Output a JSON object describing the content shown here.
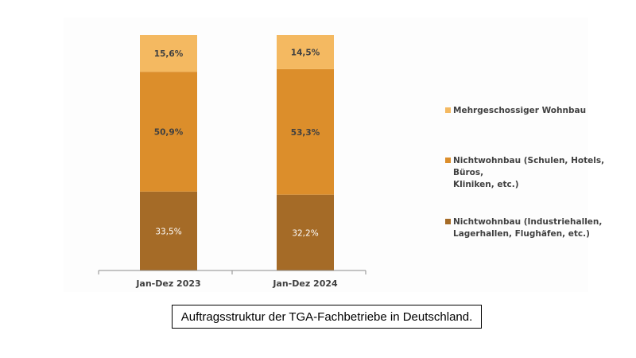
{
  "chart_data": {
    "type": "bar",
    "stacked": true,
    "categories": [
      "Jan-Dez 2023",
      "Jan-Dez 2024"
    ],
    "series": [
      {
        "name": "Nichtwohnbau (Industriehallen, Lagerhallen, Flughäfen, etc.)",
        "values": [
          33.5,
          32.2
        ],
        "labels": [
          "33,5%",
          "32,2%"
        ],
        "color": "#a56b27",
        "label_color": "#ffffff"
      },
      {
        "name": "Nichtwohnbau (Schulen, Hotels, Büros, Kliniken, etc.)",
        "values": [
          50.9,
          53.3
        ],
        "labels": [
          "50,9%",
          "53,3%"
        ],
        "color": "#dc8e2b",
        "label_color": "#404040"
      },
      {
        "name": "Mehrgeschossiger Wohnbau",
        "values": [
          15.6,
          14.5
        ],
        "labels": [
          "15,6%",
          "14,5%"
        ],
        "color": "#f4b961",
        "label_color": "#404040"
      }
    ],
    "ylim": [
      0,
      100
    ],
    "legend_position": "right",
    "title": "",
    "xlabel": "",
    "ylabel": ""
  },
  "legend": {
    "items": [
      {
        "lines": [
          "Mehrgeschossiger Wohnbau"
        ],
        "color": "#f4b961"
      },
      {
        "lines": [
          "Nichtwohnbau (Schulen, Hotels, Büros,",
          "Kliniken, etc.)"
        ],
        "color": "#dc8e2b"
      },
      {
        "lines": [
          "Nichtwohnbau (Industriehallen,",
          "Lagerhallen, Flughäfen, etc.)"
        ],
        "color": "#a56b27"
      }
    ]
  },
  "caption": "Auftragsstruktur der TGA-Fachbetriebe in Deutschland."
}
